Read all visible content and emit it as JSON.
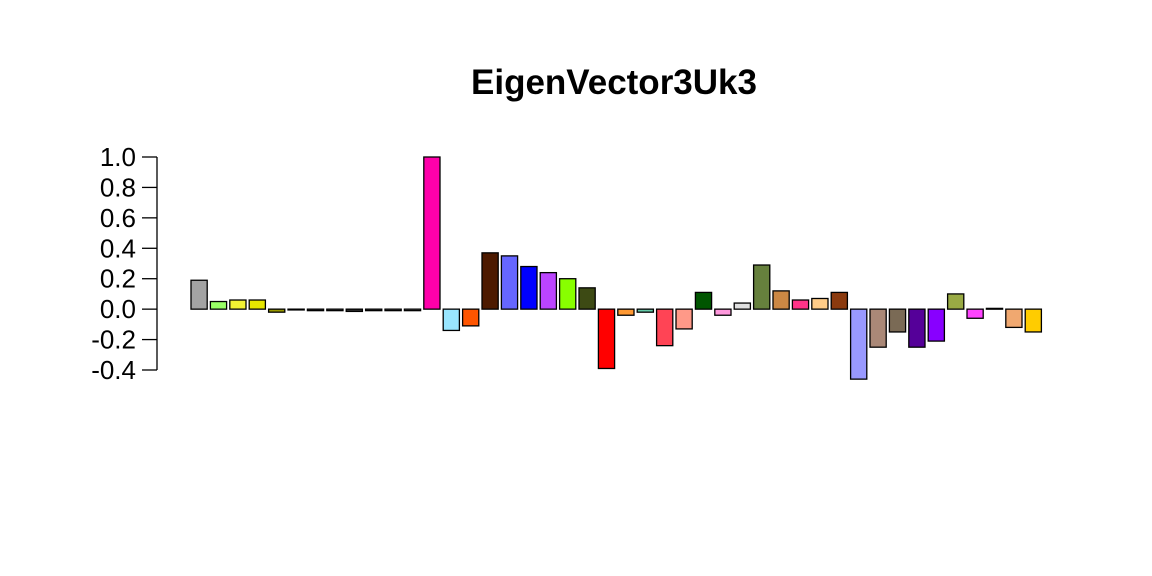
{
  "chart_data": {
    "type": "bar",
    "title": "EigenVector3Uk3",
    "xlabel": "",
    "ylabel": "",
    "ylim": [
      -0.4,
      1.0
    ],
    "yticks": [
      1.0,
      0.8,
      0.6,
      0.4,
      0.2,
      0.0,
      -0.2,
      -0.4
    ],
    "ytick_labels": [
      "1.0",
      "0.8",
      "0.6",
      "0.4",
      "0.2",
      "0.0",
      "-0.2",
      "-0.4"
    ],
    "grid": false,
    "values": [
      0.19,
      0.05,
      0.06,
      0.06,
      -0.02,
      0.0,
      -0.01,
      -0.01,
      -0.015,
      -0.01,
      -0.01,
      -0.01,
      1.0,
      -0.14,
      -0.11,
      0.37,
      0.35,
      0.28,
      0.24,
      0.2,
      0.14,
      -0.39,
      -0.04,
      -0.02,
      -0.24,
      -0.13,
      0.11,
      -0.04,
      0.04,
      0.29,
      0.12,
      0.06,
      0.07,
      0.11,
      -0.46,
      -0.25,
      -0.15,
      -0.25,
      -0.21,
      0.1,
      -0.06,
      0.005,
      -0.12,
      -0.15
    ],
    "colors": [
      "#a3a3a3",
      "#99ff66",
      "#f2f233",
      "#e6e600",
      "#999900",
      "#cccccc",
      "#444444",
      "#666666",
      "#333333",
      "#555555",
      "#777777",
      "#888888",
      "#ff00aa",
      "#99e6ff",
      "#ff5500",
      "#4d1a00",
      "#6666ff",
      "#0000ff",
      "#bb44ff",
      "#88ff00",
      "#3d4a14",
      "#ff0000",
      "#ff9933",
      "#66ccaa",
      "#ff4455",
      "#ff9988",
      "#005500",
      "#ff99dd",
      "#e0e0e0",
      "#66803d",
      "#cc8844",
      "#ff3388",
      "#ffcc88",
      "#8b3a0e",
      "#9999ff",
      "#aa8877",
      "#7a6a55",
      "#550099",
      "#8800ff",
      "#99aa44",
      "#ff44ff",
      "#999999",
      "#f0a870",
      "#ffcc00"
    ]
  }
}
